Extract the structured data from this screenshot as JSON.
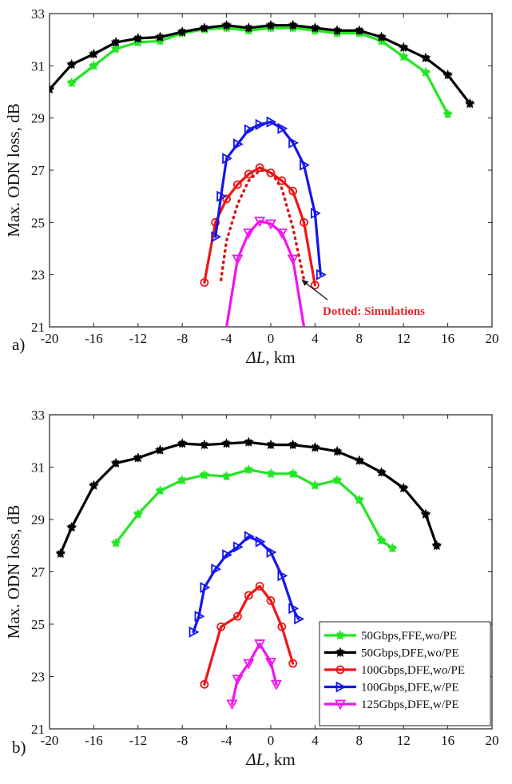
{
  "chart_data": [
    {
      "panel": "a)",
      "type": "line",
      "xlabel": "ΔL, km",
      "ylabel": "Max. ODN loss, dB",
      "xlim": [
        -20,
        20
      ],
      "ylim": [
        21,
        33
      ],
      "xticks": [
        "-20",
        "-16",
        "-12",
        "-8",
        "-4",
        "0",
        "4",
        "8",
        "12",
        "16",
        "20"
      ],
      "yticks": [
        "21",
        "23",
        "25",
        "27",
        "29",
        "31",
        "33"
      ],
      "grid": false,
      "annotation": "Dotted: Simulations",
      "series": [
        {
          "key": "50G_FFE",
          "color": "#22e622",
          "marker": "star",
          "x": [
            -18,
            -16,
            -14,
            -12,
            -10,
            -8,
            -6,
            -4,
            -2,
            0,
            2,
            4,
            6,
            8,
            10,
            12,
            14,
            16
          ],
          "y": [
            30.35,
            31.0,
            31.65,
            31.9,
            31.95,
            32.25,
            32.4,
            32.45,
            32.35,
            32.45,
            32.45,
            32.35,
            32.25,
            32.25,
            31.95,
            31.35,
            30.75,
            29.15
          ]
        },
        {
          "key": "50G_DFE",
          "color": "#000000",
          "marker": "star",
          "x": [
            -20,
            -18,
            -16,
            -14,
            -12,
            -10,
            -8,
            -6,
            -4,
            -2,
            0,
            2,
            4,
            6,
            8,
            10,
            12,
            14,
            16,
            18
          ],
          "y": [
            30.1,
            31.05,
            31.45,
            31.9,
            32.05,
            32.1,
            32.3,
            32.45,
            32.55,
            32.45,
            32.55,
            32.55,
            32.45,
            32.35,
            32.35,
            32.1,
            31.7,
            31.3,
            30.65,
            29.55
          ]
        },
        {
          "key": "100G_DFE_wo",
          "color": "#f01414",
          "marker": "circle",
          "x": [
            -6,
            -5,
            -4,
            -3,
            -2,
            -1,
            0,
            1,
            2,
            3,
            4
          ],
          "y": [
            22.7,
            25.0,
            25.9,
            26.45,
            26.85,
            27.1,
            26.9,
            26.6,
            26.2,
            25.0,
            22.6
          ]
        },
        {
          "key": "100G_DFE_w",
          "color": "#1414f0",
          "marker": "triangle-right",
          "x": [
            -5,
            -4.5,
            -4,
            -3,
            -2,
            -1,
            0,
            1,
            2,
            3,
            4,
            4.5
          ],
          "y": [
            24.45,
            26.0,
            27.45,
            28.0,
            28.55,
            28.75,
            28.85,
            28.6,
            28.05,
            27.2,
            25.35,
            23.0
          ]
        },
        {
          "key": "125G_DFE_w",
          "color": "#f014f0",
          "marker": "triangle-down",
          "x": [
            -4,
            -3,
            -2,
            -1,
            0,
            1,
            2,
            3
          ],
          "y": [
            21.0,
            23.6,
            24.6,
            25.05,
            24.95,
            24.6,
            23.6,
            21.0
          ],
          "marker_x": [
            -3,
            -2,
            -1,
            0,
            1,
            2
          ],
          "marker_y": [
            23.6,
            24.6,
            25.05,
            24.95,
            24.6,
            23.6
          ]
        },
        {
          "key": "sim",
          "color": "#d81818",
          "marker": "none",
          "dotted": true,
          "x": [
            -4.5,
            -4,
            -3,
            -2,
            -1,
            0,
            1,
            2,
            2.6,
            3.0
          ],
          "y": [
            22.8,
            24.3,
            25.7,
            26.6,
            27.0,
            26.95,
            26.3,
            24.8,
            23.6,
            22.8
          ]
        }
      ]
    },
    {
      "panel": "b)",
      "type": "line",
      "xlabel": "ΔL, km",
      "ylabel": "Max. ODN loss, dB",
      "xlim": [
        -20,
        20
      ],
      "ylim": [
        21,
        33
      ],
      "xticks": [
        "-20",
        "-16",
        "-12",
        "-8",
        "-4",
        "0",
        "4",
        "8",
        "12",
        "16",
        "20"
      ],
      "yticks": [
        "21",
        "23",
        "25",
        "27",
        "29",
        "31",
        "33"
      ],
      "grid": false,
      "legend_position": "bottom-right",
      "series": [
        {
          "name": "50Gbps,FFE,wo/PE",
          "color": "#22e622",
          "marker": "star",
          "x": [
            -14,
            -12,
            -10,
            -8,
            -6,
            -4,
            -2,
            0,
            2,
            4,
            6,
            8,
            10,
            11
          ],
          "y": [
            28.1,
            29.2,
            30.1,
            30.5,
            30.7,
            30.65,
            30.9,
            30.75,
            30.75,
            30.3,
            30.5,
            29.75,
            28.2,
            27.9
          ]
        },
        {
          "name": "50Gbps,DFE,wo/PE",
          "color": "#000000",
          "marker": "star",
          "x": [
            -19,
            -18,
            -16,
            -14,
            -12,
            -10,
            -8,
            -6,
            -4,
            -2,
            0,
            2,
            4,
            6,
            8,
            10,
            12,
            14,
            15
          ],
          "y": [
            27.7,
            28.7,
            30.3,
            31.15,
            31.35,
            31.65,
            31.9,
            31.85,
            31.9,
            31.95,
            31.85,
            31.85,
            31.75,
            31.6,
            31.25,
            30.8,
            30.2,
            29.2,
            28.0
          ]
        },
        {
          "name": "100Gbps,DFE,wo/PE",
          "color": "#f01414",
          "marker": "circle",
          "x": [
            -6,
            -4.5,
            -3,
            -2,
            -1,
            0,
            1,
            2
          ],
          "y": [
            22.7,
            24.9,
            25.3,
            26.1,
            26.45,
            25.9,
            24.9,
            23.5
          ]
        },
        {
          "name": "100Gbps,DFE,w/PE",
          "color": "#1414f0",
          "marker": "triangle-right",
          "x": [
            -7,
            -6.5,
            -6,
            -5,
            -4,
            -3,
            -2,
            -1,
            0,
            1,
            2,
            2.5
          ],
          "y": [
            24.7,
            25.3,
            26.4,
            27.1,
            27.65,
            27.95,
            28.35,
            28.15,
            27.75,
            26.85,
            25.6,
            25.2
          ]
        },
        {
          "name": "125Gbps,DFE,w/PE",
          "color": "#f014f0",
          "marker": "triangle-down",
          "x": [
            -3.5,
            -3,
            -2,
            -1,
            0,
            0.5
          ],
          "y": [
            21.95,
            22.9,
            23.5,
            24.25,
            23.55,
            22.7
          ]
        }
      ]
    }
  ]
}
